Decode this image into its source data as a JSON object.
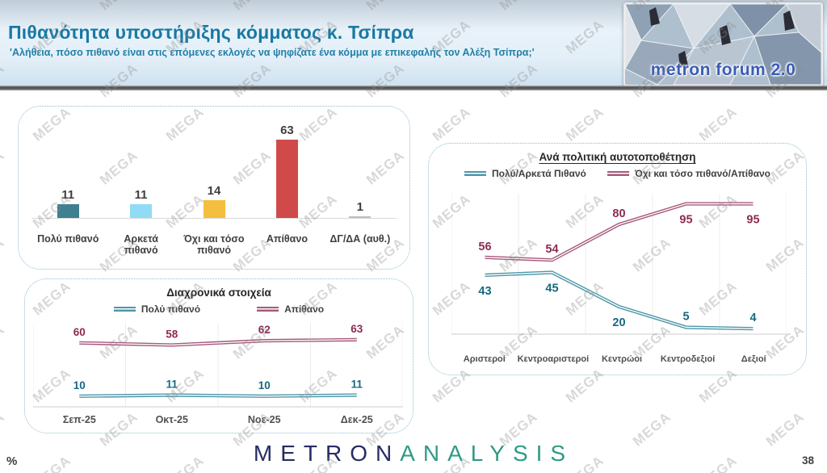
{
  "header": {
    "title": "Πιθανότητα υποστήριξης κόμματος κ. Τσίπρα",
    "subtitle": "'Αλήθεια, πόσο πιθανό είναι στις επόμενες εκλογές να ψηφίζατε ένα κόμμα με επικεφαλής τον Αλέξη Τσίπρα;'",
    "logo_text": "metron forum 2.0"
  },
  "watermark": {
    "text": "MEGA"
  },
  "footer": {
    "percent_label": "%",
    "brand": {
      "part1": "METRON",
      "part2": "ANALYSIS"
    },
    "page_number": "38"
  },
  "colors": {
    "line_teal": "#4C96A8",
    "line_magenta": "#A6597B",
    "label_teal": "#17697F",
    "label_maroon": "#8D2B53",
    "panel_border": "#8FBDCE",
    "header_title": "#1879A3"
  },
  "chart_data": [
    {
      "name": "support-likelihood-bar",
      "type": "bar",
      "categories": [
        "Πολύ πιθανό",
        "Αρκετά πιθανό",
        "Όχι και τόσο πιθανό",
        "Απίθανο",
        "ΔΓ/ΔΑ (αυθ.)"
      ],
      "values": [
        11,
        11,
        14,
        63,
        1
      ],
      "bar_colors": [
        "#3E7F90",
        "#8FDCF4",
        "#F4BE3E",
        "#D04A4A",
        "#BDBDBD"
      ],
      "ylim": [
        0,
        70
      ],
      "grid": false
    },
    {
      "name": "timeline-trend",
      "type": "line",
      "title": "Διαχρονικά στοιχεία",
      "categories": [
        "Σεπ-25",
        "Οκτ-25",
        "Νοε-25",
        "Δεκ-25"
      ],
      "series": [
        {
          "name": "Πολύ πιθανό",
          "values": [
            10,
            11,
            10,
            11
          ],
          "color": "#4C96A8",
          "label_color": "#17697F",
          "label_positions": [
            "above",
            "above",
            "above",
            "above"
          ]
        },
        {
          "name": "Απίθανο",
          "values": [
            60,
            58,
            62,
            63
          ],
          "color": "#A6597B",
          "label_color": "#8D2B53",
          "label_positions": [
            "above",
            "above",
            "above",
            "above"
          ]
        }
      ],
      "ylim": [
        0,
        80
      ],
      "legend_position": "top",
      "grid": "vertical"
    },
    {
      "name": "political-self-placement",
      "type": "line",
      "title": "Ανά πολιτική αυτοτοποθέτηση",
      "categories": [
        "Αριστεροί",
        "Κεντροαριστεροί",
        "Κεντρώοι",
        "Κεντροδεξιοί",
        "Δεξιοί"
      ],
      "series": [
        {
          "name": "Πολύ/Αρκετά Πιθανό",
          "values": [
            43,
            45,
            20,
            5,
            4
          ],
          "color": "#4C96A8",
          "label_color": "#17697F",
          "label_positions": [
            "below",
            "below",
            "below",
            "above",
            "above"
          ]
        },
        {
          "name": "Όχι και τόσο πιθανό/Απίθανο",
          "values": [
            56,
            54,
            80,
            95,
            95
          ],
          "color": "#A6597B",
          "label_color": "#8D2B53",
          "label_positions": [
            "above",
            "above",
            "above",
            "below",
            "below"
          ]
        }
      ],
      "ylim": [
        0,
        105
      ],
      "legend_position": "top",
      "grid": "vertical"
    }
  ]
}
